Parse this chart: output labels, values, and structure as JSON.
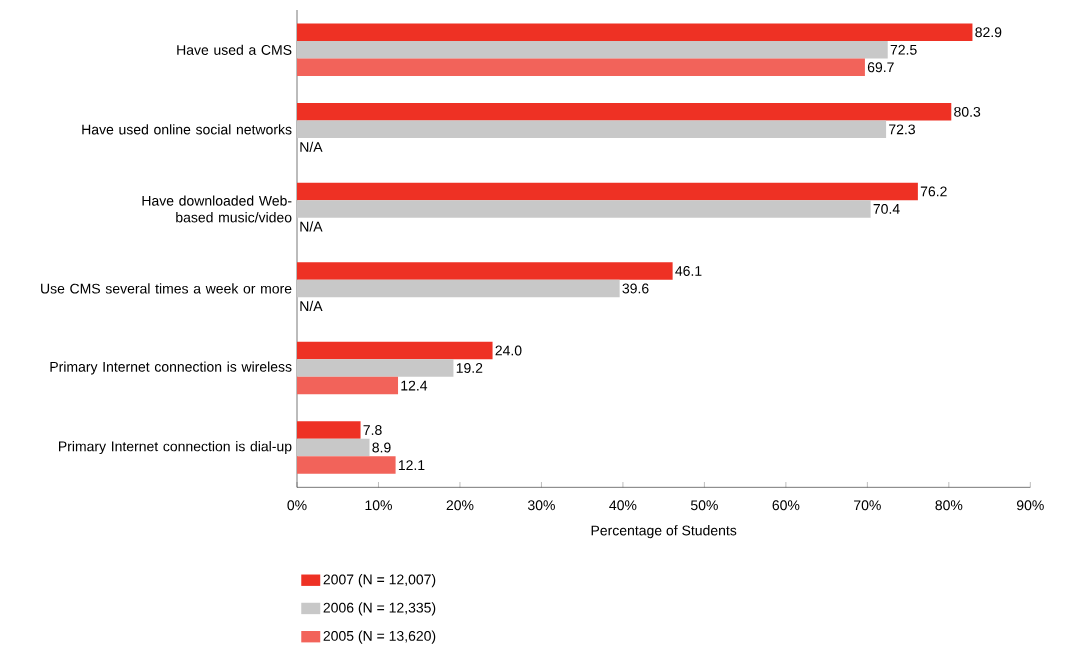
{
  "chart_data": {
    "type": "bar",
    "orientation": "horizontal",
    "xlabel": "Percentage of Students",
    "categories": [
      "Have used a CMS",
      "Have used online social networks",
      "Have downloaded Web-based music/video",
      "Use CMS several times a week or more",
      "Primary Internet connection is wireless",
      "Primary Internet connection is dial-up"
    ],
    "series": [
      {
        "name": "2007 (N = 12,007)",
        "color": "#ee3124",
        "values": [
          82.9,
          80.3,
          76.2,
          46.1,
          24.0,
          7.8
        ],
        "value_labels": [
          "82.9",
          "80.3",
          "76.2",
          "46.1",
          "24.0",
          "7.8"
        ]
      },
      {
        "name": "2006 (N = 12,335)",
        "color": "#c8c8c8",
        "values": [
          72.5,
          72.3,
          70.4,
          39.6,
          19.2,
          8.9
        ],
        "value_labels": [
          "72.5",
          "72.3",
          "70.4",
          "39.6",
          "19.2",
          "8.9"
        ]
      },
      {
        "name": "2005 (N = 13,620)",
        "color": "#f2635a",
        "values": [
          69.7,
          null,
          null,
          null,
          12.4,
          12.1
        ],
        "value_labels": [
          "69.7",
          "N/A",
          "N/A",
          "N/A",
          "12.4",
          "12.1"
        ]
      }
    ],
    "xlim": [
      0,
      90
    ],
    "xticks": [
      {
        "value": 0,
        "label": "0%"
      },
      {
        "value": 10,
        "label": "10%"
      },
      {
        "value": 20,
        "label": "20%"
      },
      {
        "value": 30,
        "label": "30%"
      },
      {
        "value": 40,
        "label": "40%"
      },
      {
        "value": 50,
        "label": "50%"
      },
      {
        "value": 60,
        "label": "60%"
      },
      {
        "value": 70,
        "label": "70%"
      },
      {
        "value": 80,
        "label": "80%"
      },
      {
        "value": 90,
        "label": "90%"
      }
    ],
    "grid": false,
    "legend": "bottom"
  }
}
